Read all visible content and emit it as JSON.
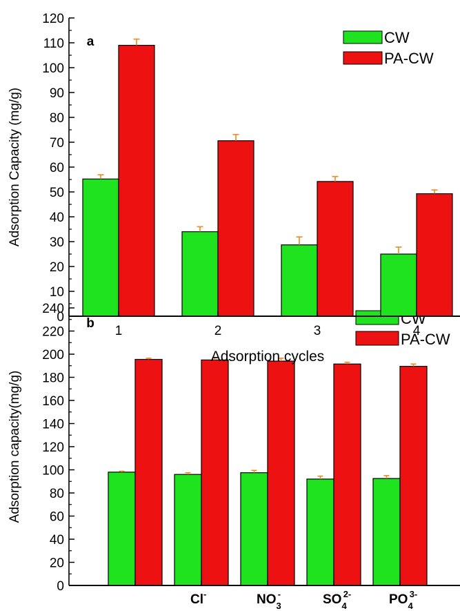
{
  "colors": {
    "cw": "#1ee31e",
    "pacw": "#ee1111",
    "error": "#f08a1e",
    "axis": "#000000"
  },
  "chart_data": [
    {
      "type": "bar",
      "panel_label": "a",
      "xlabel": "Adsorption cycles",
      "ylabel": "Adsorption Capacity (mg/g)",
      "categories": [
        "1",
        "2",
        "3",
        "4"
      ],
      "ylim": [
        0,
        120
      ],
      "yticks": [
        0,
        10,
        20,
        30,
        40,
        50,
        60,
        70,
        80,
        90,
        100,
        110,
        120
      ],
      "legend_position": "top-right",
      "series": [
        {
          "name": "CW",
          "values": [
            55.2,
            34.0,
            28.7,
            25.0
          ],
          "errors": [
            1.7,
            2.0,
            3.2,
            2.8
          ]
        },
        {
          "name": "PA-CW",
          "values": [
            109.0,
            70.6,
            54.2,
            49.3
          ],
          "errors": [
            2.5,
            2.5,
            2.0,
            1.5
          ]
        }
      ]
    },
    {
      "type": "bar",
      "panel_label": "b",
      "xlabel": "",
      "ylabel": "Adsorption capacity(mg/g)",
      "categories": [
        {
          "base": "",
          "sub": "",
          "sup": ""
        },
        {
          "base": "Cl",
          "sub": "",
          "sup": "-"
        },
        {
          "base": "NO",
          "sub": "3",
          "sup": "-"
        },
        {
          "base": "SO",
          "sub": "4",
          "sup": "2-"
        },
        {
          "base": "PO",
          "sub": "4",
          "sup": "3-"
        }
      ],
      "ylim": [
        0,
        240
      ],
      "yticks": [
        0,
        20,
        40,
        60,
        80,
        100,
        120,
        140,
        160,
        180,
        200,
        220,
        240
      ],
      "legend_position": "top-right",
      "series": [
        {
          "name": "CW",
          "values": [
            98.0,
            96.0,
            97.5,
            92.0,
            92.5
          ],
          "errors": [
            0.8,
            1.5,
            2.0,
            2.5,
            2.5
          ]
        },
        {
          "name": "PA-CW",
          "values": [
            195.5,
            195.0,
            194.0,
            191.5,
            189.5
          ],
          "errors": [
            1.0,
            2.0,
            2.5,
            1.5,
            2.0
          ]
        }
      ]
    }
  ]
}
